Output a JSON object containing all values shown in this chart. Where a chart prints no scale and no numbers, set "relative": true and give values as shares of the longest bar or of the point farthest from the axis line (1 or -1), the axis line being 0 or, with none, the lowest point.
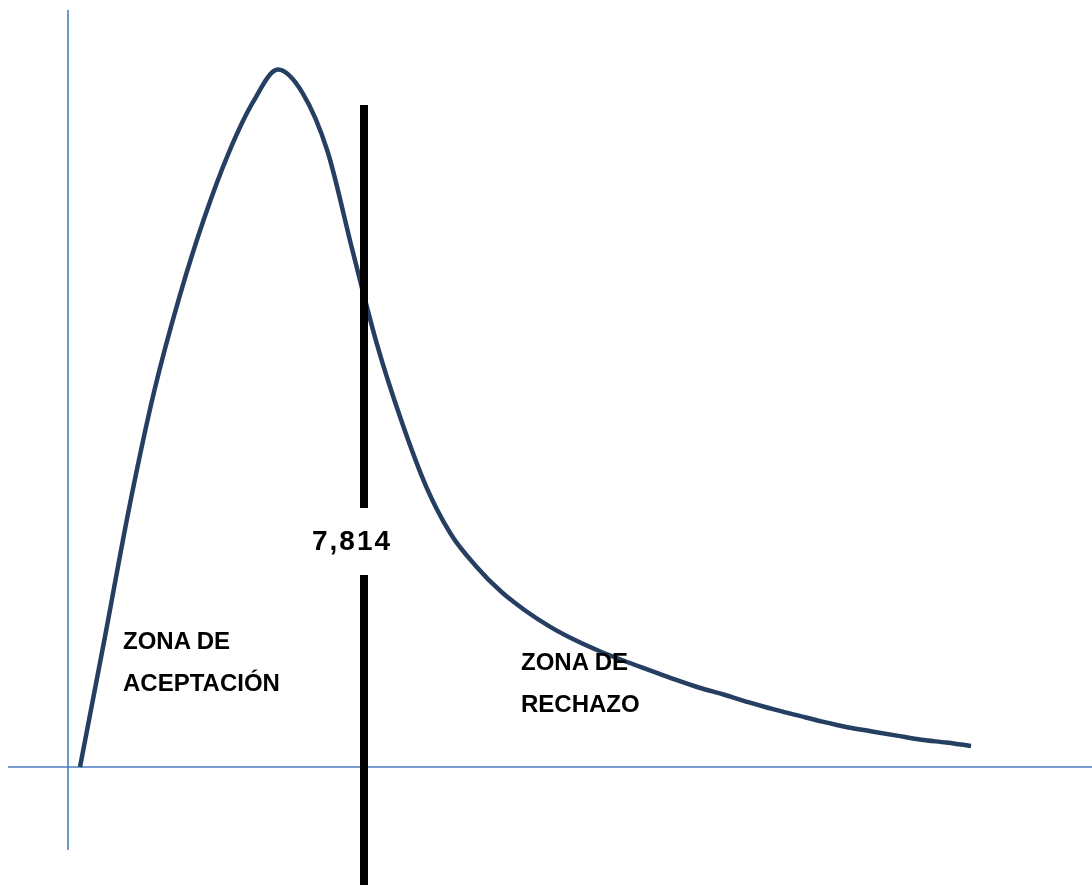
{
  "chart_data": {
    "type": "line",
    "relative": true,
    "grid": false,
    "legend": false,
    "marker": "none",
    "line_style": "solid",
    "categories": [
      null,
      null,
      null,
      null,
      null,
      null,
      null,
      null,
      null,
      null,
      null,
      null,
      null,
      null,
      null,
      null,
      null,
      null,
      null,
      null,
      null,
      null,
      null,
      null,
      null,
      null,
      null,
      null,
      null,
      null,
      null,
      null,
      null,
      null,
      null,
      null,
      null
    ],
    "series": [
      {
        "color": "#253f62",
        "values": [
          0,
          0.185,
          0.374,
          0.539,
          0.672,
          0.785,
          0.88,
          0.954,
          1,
          0.966,
          0.883,
          0.742,
          0.606,
          0.495,
          0.401,
          0.333,
          0.288,
          0.252,
          0.224,
          0.201,
          0.182,
          0.166,
          0.152,
          0.139,
          0.126,
          0.114,
          0.104,
          0.093,
          0.083,
          0.074,
          0.065,
          0.057,
          0.051,
          0.045,
          0.039,
          0.035,
          0.03
        ]
      }
    ],
    "ref_lines": [
      {
        "axis": "x",
        "label": "7,814",
        "color": "#000000"
      }
    ],
    "annotations": [
      "ZONA DE ACEPTACIÓN",
      "ZONA DE RECHAZO"
    ]
  }
}
